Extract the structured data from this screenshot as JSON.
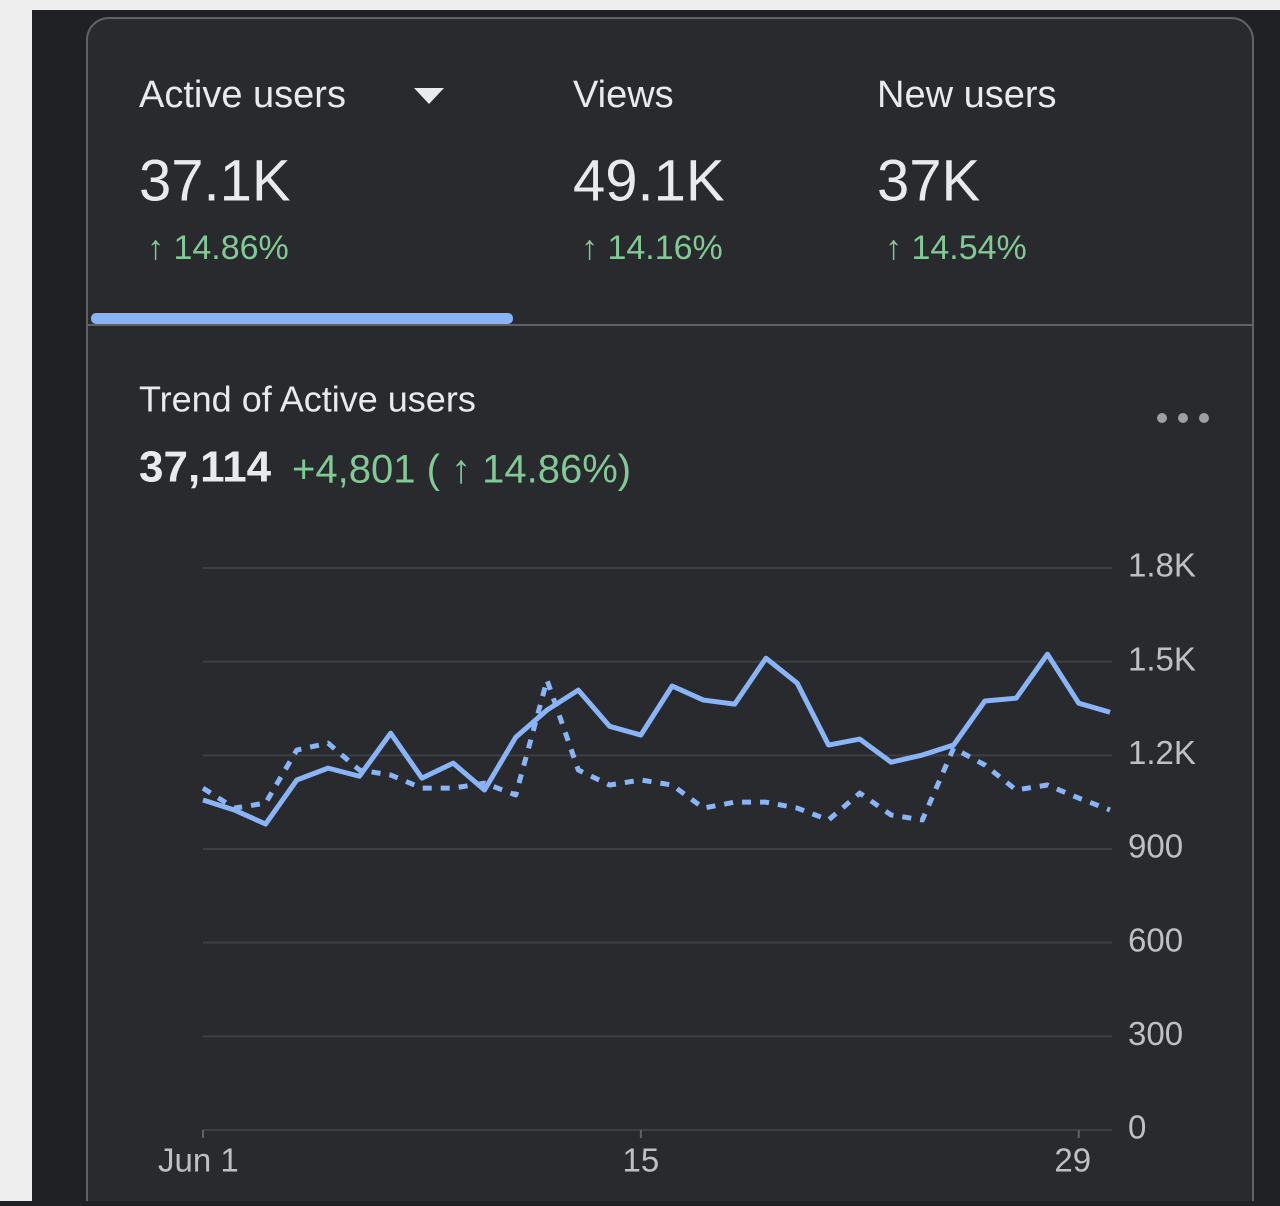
{
  "tabs": [
    {
      "label": "Active users",
      "value": "37.1K",
      "change": "↑ 14.86%"
    },
    {
      "label": "Views",
      "value": "49.1K",
      "change": "↑ 14.16%"
    },
    {
      "label": "New users",
      "value": "37K",
      "change": "↑ 14.54%"
    }
  ],
  "trend": {
    "title": "Trend of Active users",
    "total": "37,114",
    "delta": "+4,801 ( ↑ 14.86%)"
  },
  "chart_data": {
    "type": "line",
    "categories": [
      "Jun 1",
      null,
      null,
      null,
      null,
      null,
      null,
      null,
      null,
      null,
      null,
      null,
      null,
      null,
      "15",
      null,
      null,
      null,
      null,
      null,
      null,
      null,
      null,
      null,
      null,
      null,
      null,
      null,
      "29",
      null
    ],
    "series": [
      {
        "color": "#8ab4f8",
        "style": "solid",
        "values": [
          1057,
          1025,
          980,
          1121,
          1159,
          1133,
          1271,
          1127,
          1175,
          1089,
          1258,
          1345,
          1409,
          1293,
          1265,
          1422,
          1377,
          1364,
          1511,
          1431,
          1233,
          1252,
          1178,
          1201,
          1233,
          1374,
          1383,
          1524,
          1367,
          1338
        ]
      },
      {
        "color": "#8ab4f8",
        "style": "dashed",
        "values": [
          1095,
          1031,
          1047,
          1217,
          1239,
          1153,
          1137,
          1095,
          1095,
          1111,
          1073,
          1441,
          1153,
          1105,
          1121,
          1105,
          1031,
          1050,
          1050,
          1031,
          993,
          1079,
          1009,
          993,
          1223,
          1169,
          1089,
          1105,
          1063,
          1025
        ]
      }
    ],
    "ylim": [
      0,
      1800
    ],
    "yticks": [
      0,
      300,
      600,
      900,
      {
        "value": 1200,
        "label": "1.2K"
      },
      {
        "value": 1500,
        "label": "1.5K"
      },
      {
        "value": 1800,
        "label": "1.8K"
      }
    ],
    "grid": true
  }
}
